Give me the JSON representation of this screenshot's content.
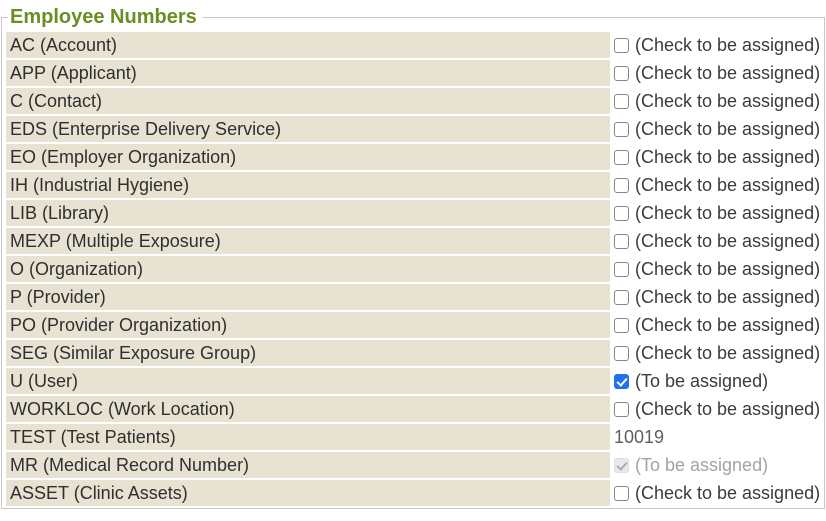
{
  "section": {
    "title": "Employee Numbers"
  },
  "colors": {
    "title_green": "#6b8e23",
    "row_background_beige": "#e7e2d1",
    "panel_border_gray": "#c8c8c8",
    "checkbox_checked_blue": "#2170f0",
    "disabled_gray": "#a3a3a3"
  },
  "rows": [
    {
      "label": "AC (Account)",
      "control": "checkbox",
      "checked": false,
      "disabled": false,
      "text": "(Check to be assigned)"
    },
    {
      "label": "APP (Applicant)",
      "control": "checkbox",
      "checked": false,
      "disabled": false,
      "text": "(Check to be assigned)"
    },
    {
      "label": "C (Contact)",
      "control": "checkbox",
      "checked": false,
      "disabled": false,
      "text": "(Check to be assigned)"
    },
    {
      "label": "EDS (Enterprise Delivery Service)",
      "control": "checkbox",
      "checked": false,
      "disabled": false,
      "text": "(Check to be assigned)"
    },
    {
      "label": "EO (Employer Organization)",
      "control": "checkbox",
      "checked": false,
      "disabled": false,
      "text": "(Check to be assigned)"
    },
    {
      "label": "IH (Industrial Hygiene)",
      "control": "checkbox",
      "checked": false,
      "disabled": false,
      "text": "(Check to be assigned)"
    },
    {
      "label": "LIB (Library)",
      "control": "checkbox",
      "checked": false,
      "disabled": false,
      "text": "(Check to be assigned)"
    },
    {
      "label": "MEXP (Multiple Exposure)",
      "control": "checkbox",
      "checked": false,
      "disabled": false,
      "text": "(Check to be assigned)"
    },
    {
      "label": "O (Organization)",
      "control": "checkbox",
      "checked": false,
      "disabled": false,
      "text": "(Check to be assigned)"
    },
    {
      "label": "P (Provider)",
      "control": "checkbox",
      "checked": false,
      "disabled": false,
      "text": "(Check to be assigned)"
    },
    {
      "label": "PO (Provider Organization)",
      "control": "checkbox",
      "checked": false,
      "disabled": false,
      "text": "(Check to be assigned)"
    },
    {
      "label": "SEG (Similar Exposure Group)",
      "control": "checkbox",
      "checked": false,
      "disabled": false,
      "text": "(Check to be assigned)"
    },
    {
      "label": "U (User)",
      "control": "checkbox",
      "checked": true,
      "disabled": false,
      "text": "(To be assigned)"
    },
    {
      "label": "WORKLOC (Work Location)",
      "control": "checkbox",
      "checked": false,
      "disabled": false,
      "text": "(Check to be assigned)"
    },
    {
      "label": "TEST (Test Patients)",
      "control": "text",
      "text": "10019"
    },
    {
      "label": "MR (Medical Record Number)",
      "control": "checkbox",
      "checked": true,
      "disabled": true,
      "text": "(To be assigned)"
    },
    {
      "label": "ASSET (Clinic Assets)",
      "control": "checkbox",
      "checked": false,
      "disabled": false,
      "text": "(Check to be assigned)"
    }
  ]
}
